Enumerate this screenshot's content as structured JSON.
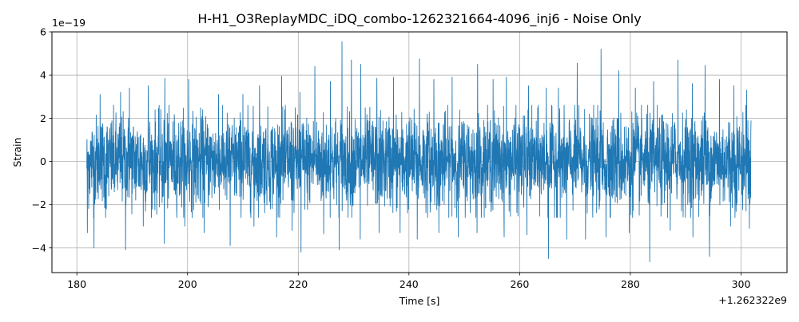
{
  "chart_data": {
    "type": "line",
    "title": "H-H1_O3ReplayMDC_iDQ_combo-1262321664-4096_inj6 - Noise Only",
    "xlabel": "Time [s]",
    "ylabel": "Strain",
    "x_offset_label": "+1.262322e9",
    "y_multiplier_label": "1e−19",
    "xlim": [
      175.5,
      308.3
    ],
    "ylim": [
      -5.15,
      6.0
    ],
    "x_ticks": [
      180,
      200,
      220,
      240,
      260,
      280,
      300
    ],
    "x_tick_labels": [
      "180",
      "200",
      "220",
      "240",
      "260",
      "280",
      "300"
    ],
    "y_ticks": [
      -4,
      -2,
      0,
      2,
      4,
      6
    ],
    "y_tick_labels": [
      "−4",
      "−2",
      "0",
      "2",
      "4",
      "6"
    ],
    "grid": true,
    "line_color": "#1f77b4",
    "series": [
      {
        "x_range": [
          181.8,
          301.8
        ],
        "envelope_typical": [
          -1.7,
          1.7
        ],
        "min": -4.65,
        "max": 5.55,
        "peaks": [
          {
            "x": 184.2,
            "y": 3.1
          },
          {
            "x": 187.9,
            "y": 3.2
          },
          {
            "x": 189.5,
            "y": 3.4
          },
          {
            "x": 192.9,
            "y": 3.5
          },
          {
            "x": 195.9,
            "y": 3.85
          },
          {
            "x": 200.2,
            "y": 3.8
          },
          {
            "x": 205.6,
            "y": 3.1
          },
          {
            "x": 210.0,
            "y": 3.1
          },
          {
            "x": 213.0,
            "y": 3.5
          },
          {
            "x": 217.0,
            "y": 3.95
          },
          {
            "x": 220.3,
            "y": 3.2
          },
          {
            "x": 223.0,
            "y": 4.4
          },
          {
            "x": 225.8,
            "y": 3.7
          },
          {
            "x": 227.9,
            "y": 5.55
          },
          {
            "x": 229.6,
            "y": 4.7
          },
          {
            "x": 231.3,
            "y": 4.5
          },
          {
            "x": 234.2,
            "y": 3.85
          },
          {
            "x": 237.2,
            "y": 3.9
          },
          {
            "x": 241.9,
            "y": 4.75
          },
          {
            "x": 244.5,
            "y": 3.8
          },
          {
            "x": 247.8,
            "y": 3.9
          },
          {
            "x": 252.4,
            "y": 4.5
          },
          {
            "x": 255.2,
            "y": 3.8
          },
          {
            "x": 257.6,
            "y": 3.9
          },
          {
            "x": 261.6,
            "y": 3.5
          },
          {
            "x": 264.8,
            "y": 3.4
          },
          {
            "x": 267.0,
            "y": 3.4
          },
          {
            "x": 270.4,
            "y": 4.55
          },
          {
            "x": 274.7,
            "y": 5.2
          },
          {
            "x": 277.9,
            "y": 4.2
          },
          {
            "x": 280.9,
            "y": 3.4
          },
          {
            "x": 284.2,
            "y": 3.7
          },
          {
            "x": 288.6,
            "y": 4.7
          },
          {
            "x": 291.2,
            "y": 3.6
          },
          {
            "x": 293.5,
            "y": 4.45
          },
          {
            "x": 296.1,
            "y": 3.8
          },
          {
            "x": 298.7,
            "y": 3.5
          },
          {
            "x": 301.0,
            "y": 3.3
          }
        ],
        "troughs": [
          {
            "x": 181.9,
            "y": -3.3
          },
          {
            "x": 183.1,
            "y": -4.0
          },
          {
            "x": 185.2,
            "y": -2.6
          },
          {
            "x": 188.8,
            "y": -4.1
          },
          {
            "x": 192.0,
            "y": -3.0
          },
          {
            "x": 195.8,
            "y": -3.8
          },
          {
            "x": 199.5,
            "y": -3.0
          },
          {
            "x": 203.0,
            "y": -3.3
          },
          {
            "x": 207.7,
            "y": -3.9
          },
          {
            "x": 212.0,
            "y": -3.0
          },
          {
            "x": 216.1,
            "y": -3.5
          },
          {
            "x": 218.9,
            "y": -3.2
          },
          {
            "x": 220.5,
            "y": -4.2
          },
          {
            "x": 224.6,
            "y": -3.35
          },
          {
            "x": 227.4,
            "y": -4.1
          },
          {
            "x": 231.2,
            "y": -3.6
          },
          {
            "x": 234.6,
            "y": -3.3
          },
          {
            "x": 238.4,
            "y": -3.3
          },
          {
            "x": 241.5,
            "y": -3.6
          },
          {
            "x": 245.4,
            "y": -3.3
          },
          {
            "x": 248.9,
            "y": -3.5
          },
          {
            "x": 252.3,
            "y": -3.3
          },
          {
            "x": 257.2,
            "y": -3.5
          },
          {
            "x": 261.3,
            "y": -3.4
          },
          {
            "x": 265.2,
            "y": -4.5
          },
          {
            "x": 268.5,
            "y": -3.6
          },
          {
            "x": 271.9,
            "y": -3.6
          },
          {
            "x": 275.6,
            "y": -3.5
          },
          {
            "x": 279.8,
            "y": -3.3
          },
          {
            "x": 283.5,
            "y": -4.65
          },
          {
            "x": 287.2,
            "y": -3.2
          },
          {
            "x": 291.3,
            "y": -3.5
          },
          {
            "x": 294.3,
            "y": -4.4
          },
          {
            "x": 298.1,
            "y": -3.0
          },
          {
            "x": 301.5,
            "y": -3.1
          }
        ]
      }
    ]
  }
}
